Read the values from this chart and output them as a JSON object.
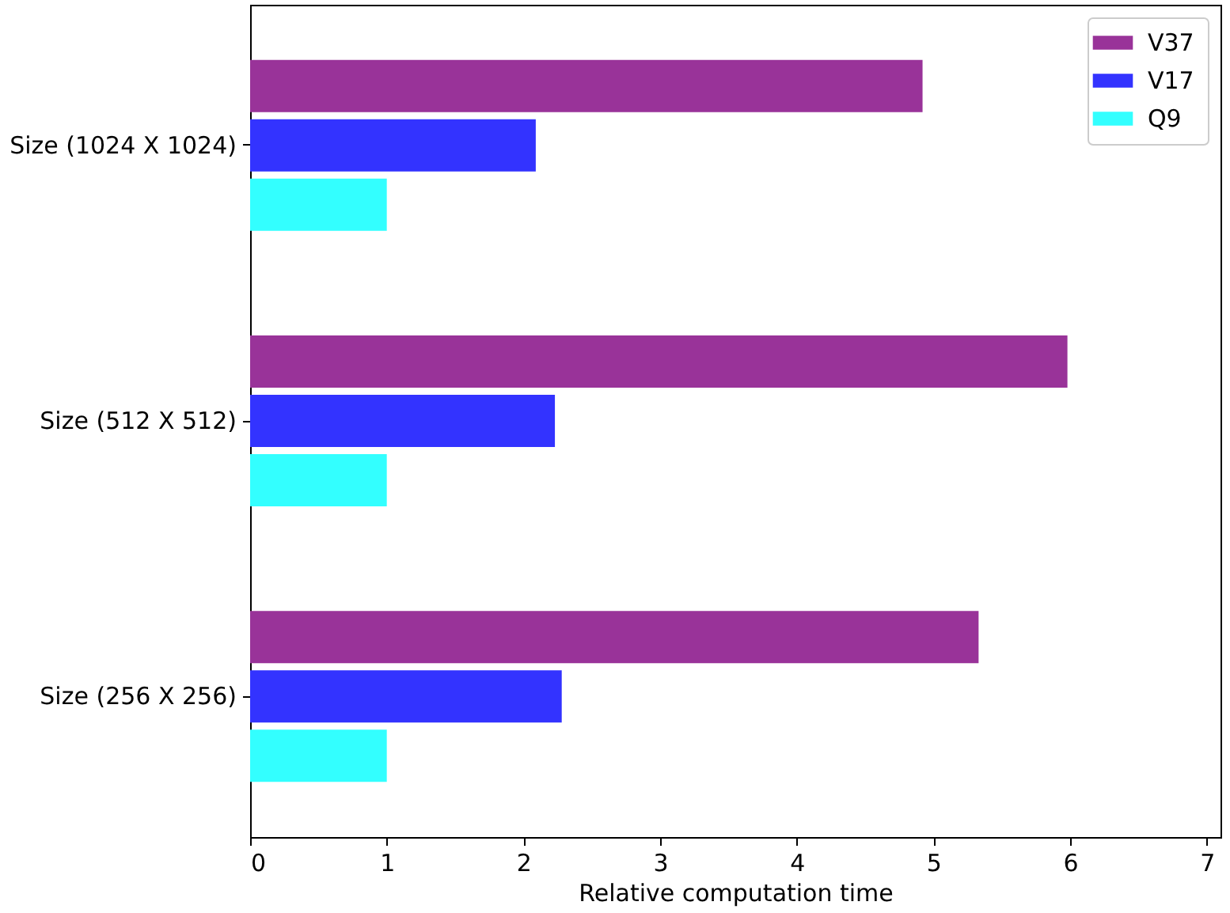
{
  "chart_data": {
    "type": "bar",
    "orientation": "horizontal",
    "xlabel": "Relative computation time",
    "categories": [
      "Size (1024 X 1024)",
      "Size (512 X 512)",
      "Size (256 X 256)"
    ],
    "series": [
      {
        "name": "V37",
        "color": "#993399",
        "values": [
          4.92,
          5.98,
          5.33
        ]
      },
      {
        "name": "V17",
        "color": "#3333ff",
        "values": [
          2.09,
          2.23,
          2.28
        ]
      },
      {
        "name": "Q9",
        "color": "#33ffff",
        "values": [
          1.0,
          1.0,
          1.0
        ]
      }
    ],
    "xlim": [
      0,
      7.1
    ],
    "xticks": [
      0,
      1,
      2,
      3,
      4,
      5,
      6,
      7
    ],
    "grid": false,
    "legend": "top right"
  }
}
